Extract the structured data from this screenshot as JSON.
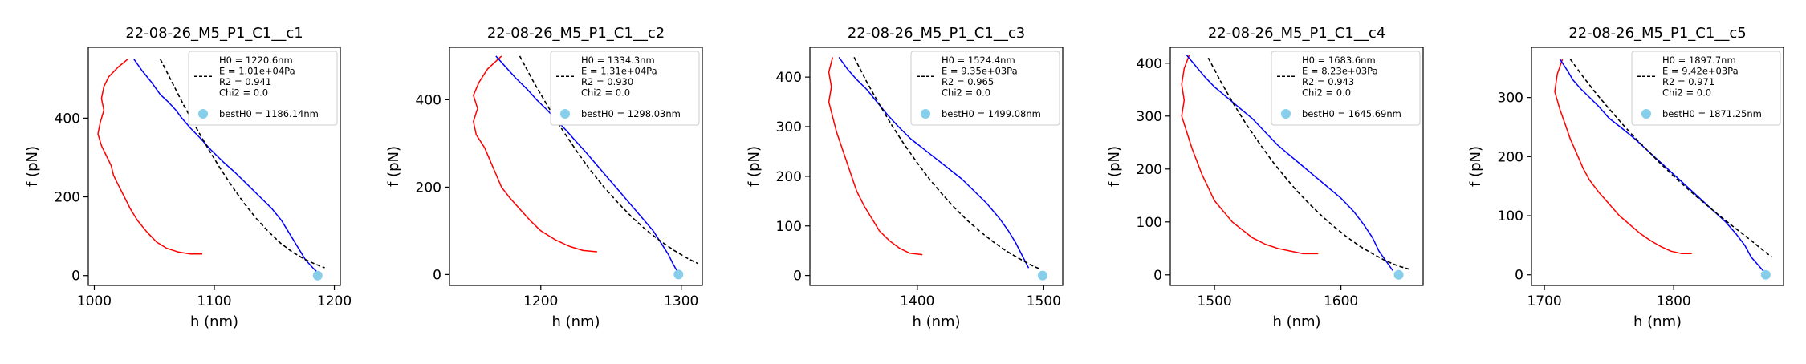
{
  "chart_data": [
    {
      "type": "line",
      "title": "22-08-26_M5_P1_C1__c1",
      "xlabel": "h (nm)",
      "ylabel": "f (pN)",
      "xlim": [
        995,
        1205
      ],
      "ylim": [
        -25,
        580
      ],
      "xticks": [
        1000,
        1100,
        1200
      ],
      "yticks": [
        0,
        200,
        400
      ],
      "legend_position": "top-right",
      "legend": {
        "fit_lines": [
          "H0 = 1220.6nm",
          "E = 1.01e+04Pa",
          "R2 = 0.941",
          "Chi2 = 0.0"
        ],
        "best_label": "bestH0 = 1186.14nm"
      },
      "best_point": {
        "x": 1186.14,
        "y": 0
      },
      "series": [
        {
          "role": "approach",
          "color": "#0000ff",
          "x": [
            1033,
            1040,
            1048,
            1055,
            1062,
            1068,
            1073,
            1080,
            1088,
            1097,
            1107,
            1118,
            1128,
            1138,
            1148,
            1156,
            1162,
            1168,
            1172,
            1176,
            1182,
            1186
          ],
          "y": [
            550,
            520,
            490,
            460,
            440,
            420,
            400,
            375,
            350,
            320,
            290,
            260,
            230,
            200,
            170,
            140,
            110,
            80,
            60,
            40,
            20,
            8
          ]
        },
        {
          "role": "retract",
          "color": "#ff0000",
          "x": [
            1028,
            1020,
            1012,
            1008,
            1006,
            1008,
            1005,
            1003,
            1006,
            1010,
            1014,
            1016,
            1020,
            1025,
            1030,
            1036,
            1044,
            1052,
            1060,
            1070,
            1080,
            1090
          ],
          "y": [
            550,
            530,
            505,
            480,
            450,
            420,
            390,
            360,
            330,
            305,
            280,
            255,
            230,
            200,
            170,
            140,
            110,
            85,
            70,
            60,
            55,
            55
          ]
        },
        {
          "role": "fit",
          "color": "#000000",
          "dashed": true,
          "x": [
            1055,
            1065,
            1075,
            1085,
            1095,
            1105,
            1115,
            1125,
            1135,
            1145,
            1155,
            1165,
            1175,
            1185,
            1192
          ],
          "y": [
            550,
            490,
            430,
            375,
            322,
            272,
            226,
            183,
            145,
            112,
            83,
            60,
            42,
            28,
            20
          ]
        }
      ]
    },
    {
      "type": "line",
      "title": "22-08-26_M5_P1_C1__c2",
      "xlabel": "h (nm)",
      "ylabel": "f (pN)",
      "xlim": [
        1135,
        1315
      ],
      "ylim": [
        -25,
        520
      ],
      "xticks": [
        1200,
        1300
      ],
      "yticks": [
        0,
        200,
        400
      ],
      "legend_position": "top-right",
      "legend": {
        "fit_lines": [
          "H0 = 1334.3nm",
          "E = 1.31e+04Pa",
          "R2 = 0.930",
          "Chi2 = 0.0"
        ],
        "best_label": "bestH0 = 1298.03nm"
      },
      "best_point": {
        "x": 1298.03,
        "y": 0
      },
      "series": [
        {
          "role": "approach",
          "color": "#0000ff",
          "x": [
            1168,
            1175,
            1182,
            1190,
            1197,
            1205,
            1212,
            1218,
            1225,
            1232,
            1240,
            1248,
            1256,
            1264,
            1272,
            1280,
            1286,
            1291,
            1294,
            1297
          ],
          "y": [
            500,
            475,
            450,
            425,
            400,
            375,
            350,
            330,
            305,
            280,
            250,
            220,
            190,
            160,
            130,
            100,
            70,
            45,
            25,
            8
          ]
        },
        {
          "role": "retract",
          "color": "#ff0000",
          "x": [
            1172,
            1162,
            1156,
            1152,
            1155,
            1152,
            1154,
            1160,
            1164,
            1168,
            1172,
            1178,
            1185,
            1192,
            1200,
            1210,
            1220,
            1230,
            1240
          ],
          "y": [
            500,
            470,
            440,
            410,
            380,
            350,
            320,
            290,
            260,
            230,
            200,
            175,
            150,
            125,
            100,
            80,
            65,
            55,
            52
          ]
        },
        {
          "role": "fit",
          "color": "#000000",
          "dashed": true,
          "x": [
            1185,
            1195,
            1205,
            1215,
            1225,
            1235,
            1245,
            1255,
            1265,
            1275,
            1285,
            1295,
            1305,
            1312
          ],
          "y": [
            500,
            440,
            385,
            333,
            285,
            240,
            200,
            164,
            131,
            102,
            77,
            55,
            36,
            25
          ]
        }
      ]
    },
    {
      "type": "line",
      "title": "22-08-26_M5_P1_C1__c3",
      "xlabel": "h (nm)",
      "ylabel": "f (pN)",
      "xlim": [
        1315,
        1515
      ],
      "ylim": [
        -20,
        460
      ],
      "xticks": [
        1400,
        1500
      ],
      "yticks": [
        0,
        100,
        200,
        300,
        400
      ],
      "legend_position": "top-right",
      "legend": {
        "fit_lines": [
          "H0 = 1524.4nm",
          "E = 9.35e+03Pa",
          "R2 = 0.965",
          "Chi2 = 0.0"
        ],
        "best_label": "bestH0 = 1499.08nm"
      },
      "best_point": {
        "x": 1499.08,
        "y": 0
      },
      "series": [
        {
          "role": "approach",
          "color": "#0000ff",
          "x": [
            1338,
            1345,
            1352,
            1360,
            1368,
            1376,
            1385,
            1395,
            1405,
            1415,
            1425,
            1435,
            1445,
            1455,
            1465,
            1472,
            1478,
            1483,
            1488
          ],
          "y": [
            440,
            415,
            395,
            375,
            350,
            325,
            300,
            275,
            255,
            235,
            215,
            195,
            170,
            145,
            115,
            90,
            65,
            40,
            15
          ]
        },
        {
          "role": "retract",
          "color": "#ff0000",
          "x": [
            1333,
            1330,
            1332,
            1330,
            1333,
            1336,
            1340,
            1344,
            1348,
            1352,
            1358,
            1364,
            1370,
            1378,
            1386,
            1394,
            1404
          ],
          "y": [
            440,
            410,
            380,
            350,
            320,
            290,
            260,
            230,
            200,
            170,
            140,
            115,
            90,
            70,
            55,
            45,
            42
          ]
        },
        {
          "role": "fit",
          "color": "#000000",
          "dashed": true,
          "x": [
            1350,
            1360,
            1370,
            1380,
            1390,
            1400,
            1410,
            1420,
            1430,
            1440,
            1450,
            1460,
            1470,
            1480,
            1490,
            1497
          ],
          "y": [
            440,
            390,
            345,
            302,
            263,
            227,
            193,
            163,
            135,
            110,
            88,
            68,
            50,
            35,
            21,
            13
          ]
        }
      ]
    },
    {
      "type": "line",
      "title": "22-08-26_M5_P1_C1__c4",
      "xlabel": "h (nm)",
      "ylabel": "f (pN)",
      "xlim": [
        1465,
        1665
      ],
      "ylim": [
        -20,
        430
      ],
      "xticks": [
        1500,
        1600
      ],
      "yticks": [
        0,
        100,
        200,
        300,
        400
      ],
      "legend_position": "top-right",
      "legend": {
        "fit_lines": [
          "H0 = 1683.6nm",
          "E = 8.23e+03Pa",
          "R2 = 0.943",
          "Chi2 = 0.0"
        ],
        "best_label": "bestH0 = 1645.69nm"
      },
      "best_point": {
        "x": 1645.69,
        "y": 0
      },
      "series": [
        {
          "role": "approach",
          "color": "#0000ff",
          "x": [
            1478,
            1485,
            1492,
            1500,
            1510,
            1520,
            1530,
            1540,
            1550,
            1560,
            1570,
            1580,
            1590,
            1600,
            1610,
            1618,
            1625,
            1630,
            1636,
            1641
          ],
          "y": [
            415,
            395,
            375,
            355,
            335,
            315,
            295,
            270,
            245,
            225,
            205,
            185,
            165,
            145,
            120,
            95,
            70,
            45,
            25,
            8
          ]
        },
        {
          "role": "retract",
          "color": "#ff0000",
          "x": [
            1480,
            1476,
            1474,
            1476,
            1474,
            1478,
            1482,
            1486,
            1490,
            1495,
            1500,
            1507,
            1514,
            1522,
            1530,
            1540,
            1550,
            1560,
            1570,
            1582
          ],
          "y": [
            415,
            390,
            360,
            330,
            300,
            270,
            240,
            215,
            190,
            165,
            140,
            120,
            100,
            85,
            70,
            58,
            50,
            45,
            40,
            40
          ]
        },
        {
          "role": "fit",
          "color": "#000000",
          "dashed": true,
          "x": [
            1495,
            1505,
            1515,
            1525,
            1535,
            1545,
            1555,
            1565,
            1575,
            1585,
            1595,
            1605,
            1615,
            1625,
            1635,
            1645,
            1655
          ],
          "y": [
            410,
            365,
            323,
            285,
            250,
            217,
            187,
            159,
            134,
            111,
            90,
            71,
            54,
            40,
            27,
            17,
            10
          ]
        }
      ]
    },
    {
      "type": "line",
      "title": "22-08-26_M5_P1_C1__c5",
      "xlabel": "h (nm)",
      "ylabel": "f (pN)",
      "xlim": [
        1690,
        1885
      ],
      "ylim": [
        -18,
        385
      ],
      "xticks": [
        1700,
        1800
      ],
      "yticks": [
        0,
        100,
        200,
        300
      ],
      "legend_position": "top-right",
      "legend": {
        "fit_lines": [
          "H0 = 1897.7nm",
          "E = 9.42e+03Pa",
          "R2 = 0.971",
          "Chi2 = 0.0"
        ],
        "best_label": "bestH0 = 1871.25nm"
      },
      "best_point": {
        "x": 1871.25,
        "y": 0
      },
      "series": [
        {
          "role": "approach",
          "color": "#0000ff",
          "x": [
            1712,
            1718,
            1722,
            1728,
            1735,
            1742,
            1750,
            1760,
            1770,
            1780,
            1790,
            1800,
            1810,
            1820,
            1830,
            1840,
            1848,
            1855,
            1860,
            1866,
            1870
          ],
          "y": [
            365,
            345,
            330,
            315,
            300,
            285,
            265,
            248,
            230,
            210,
            190,
            170,
            150,
            130,
            110,
            90,
            70,
            50,
            30,
            15,
            5
          ]
        },
        {
          "role": "retract",
          "color": "#ff0000",
          "x": [
            1714,
            1710,
            1708,
            1712,
            1716,
            1720,
            1725,
            1730,
            1735,
            1742,
            1750,
            1758,
            1766,
            1774,
            1782,
            1790,
            1798,
            1806,
            1814
          ],
          "y": [
            365,
            340,
            310,
            280,
            255,
            230,
            205,
            180,
            160,
            140,
            120,
            100,
            85,
            70,
            58,
            48,
            40,
            36,
            36
          ]
        },
        {
          "role": "fit",
          "color": "#000000",
          "dashed": true,
          "x": [
            1720,
            1730,
            1740,
            1750,
            1760,
            1770,
            1780,
            1790,
            1800,
            1810,
            1820,
            1830,
            1840,
            1850,
            1860,
            1870,
            1876
          ],
          "y": [
            365,
            335,
            307,
            281,
            256,
            232,
            210,
            188,
            167,
            147,
            128,
            110,
            92,
            75,
            58,
            40,
            30
          ]
        }
      ]
    }
  ]
}
